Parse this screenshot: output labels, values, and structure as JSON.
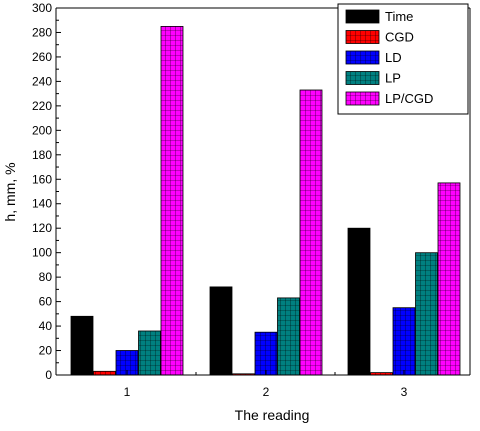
{
  "chart_data": {
    "type": "bar",
    "categories": [
      "1",
      "2",
      "3"
    ],
    "xlabel": "The reading",
    "ylabel": "h, mm, %",
    "ylim": [
      0,
      300
    ],
    "yticks": [
      "0",
      "20",
      "40",
      "60",
      "80",
      "100",
      "120",
      "140",
      "160",
      "180",
      "200",
      "220",
      "240",
      "260",
      "280",
      "300"
    ],
    "grid": false,
    "legend_position": "top-right",
    "series": [
      {
        "name": "Time",
        "values": [
          48,
          72,
          120
        ],
        "color": "#000000",
        "pattern": "solid"
      },
      {
        "name": "CGD",
        "values": [
          3,
          1,
          2
        ],
        "color": "#ff0000",
        "pattern": "grid"
      },
      {
        "name": "LD",
        "values": [
          20,
          35,
          55
        ],
        "color": "#0000ff",
        "pattern": "grid"
      },
      {
        "name": "LP",
        "values": [
          36,
          63,
          100
        ],
        "color": "#008080",
        "pattern": "grid"
      },
      {
        "name": "LP/CGD",
        "values": [
          285,
          233,
          157
        ],
        "color": "#ff00ff",
        "pattern": "grid"
      }
    ]
  }
}
